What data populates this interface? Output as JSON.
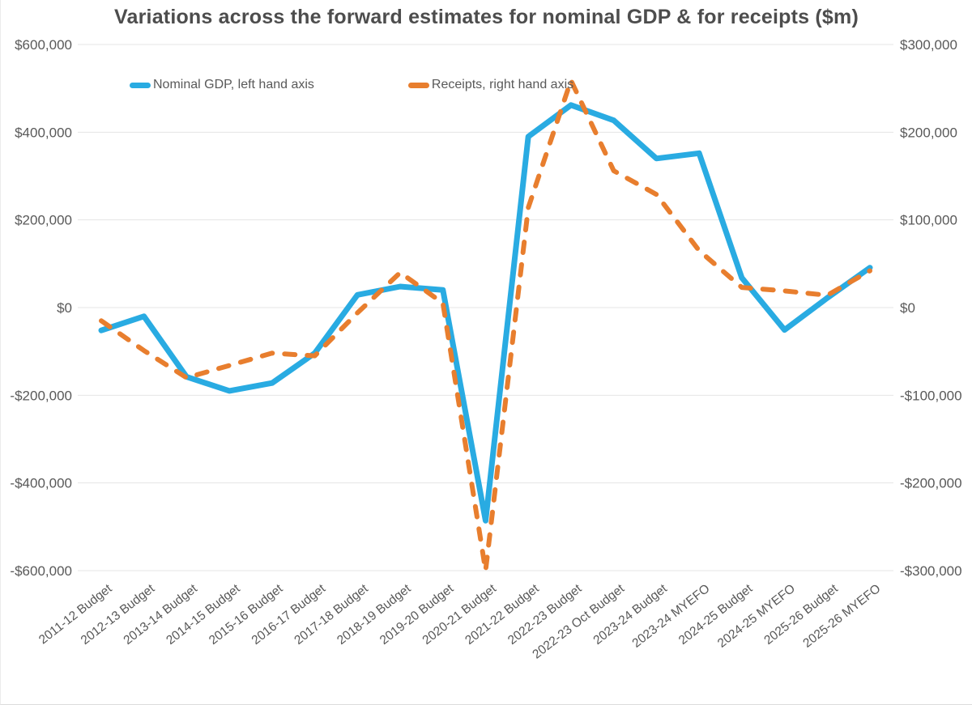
{
  "title": "Variations across the forward estimates for nominal GDP & for receipts ($m)",
  "legend": [
    {
      "label": "Nominal GDP, left hand axis",
      "color": "#29abe2"
    },
    {
      "label": "Receipts, right hand axis",
      "color": "#e87e2e"
    }
  ],
  "colors": {
    "nominal_gdp_line": "#29abe2",
    "receipts_line": "#e87e2e",
    "text": "#595959",
    "title_text": "#4d4d4d",
    "gridline": "#e4e4e4"
  },
  "chart_data": {
    "type": "line",
    "title": "Variations across the forward estimates for nominal GDP & for receipts ($m)",
    "grid": true,
    "legend_position": "top-left-inside",
    "categories": [
      "2011-12 Budget",
      "2012-13 Budget",
      "2013-14 Budget",
      "2014-15 Budget",
      "2015-16 Budget",
      "2016-17 Budget",
      "2017-18 Budget",
      "2018-19 Budget",
      "2019-20 Budget",
      "2020-21 Budget",
      "2021-22 Budget",
      "2022-23 Budget",
      "2022-23 Oct Budget",
      "2023-24 Budget",
      "2023-24 MYEFO",
      "2024-25 Budget",
      "2024-25 MYEFO",
      "2025-26 Budget",
      "2025-26 MYEFO"
    ],
    "series": [
      {
        "name": "Nominal GDP, left hand axis",
        "axis": "left",
        "style": "solid",
        "color": "#29abe2",
        "values": [
          -52000,
          -20000,
          -158000,
          -190000,
          -172000,
          -104000,
          29000,
          48000,
          40000,
          -486000,
          390000,
          462000,
          427000,
          340000,
          352000,
          68000,
          -51000,
          22000,
          91000
        ]
      },
      {
        "name": "Receipts, right hand axis",
        "axis": "right",
        "style": "dashed",
        "color": "#e87e2e",
        "values": [
          -15000,
          -49000,
          -80000,
          -66000,
          -52000,
          -55000,
          -6000,
          40000,
          5000,
          -300000,
          114000,
          259000,
          156000,
          129000,
          65000,
          23000,
          19000,
          14000,
          42000
        ]
      }
    ],
    "left_axis": {
      "min": -600000,
      "max": 600000,
      "tick_step": 200000,
      "tick_labels": [
        "$600,000",
        "$400,000",
        "$200,000",
        "$0",
        "-$200,000",
        "-$400,000",
        "-$600,000"
      ]
    },
    "right_axis": {
      "min": -300000,
      "max": 300000,
      "tick_step": 100000,
      "tick_labels": [
        "$300,000",
        "$200,000",
        "$100,000",
        "$0",
        "-$100,000",
        "-$200,000",
        "-$300,000"
      ]
    }
  }
}
